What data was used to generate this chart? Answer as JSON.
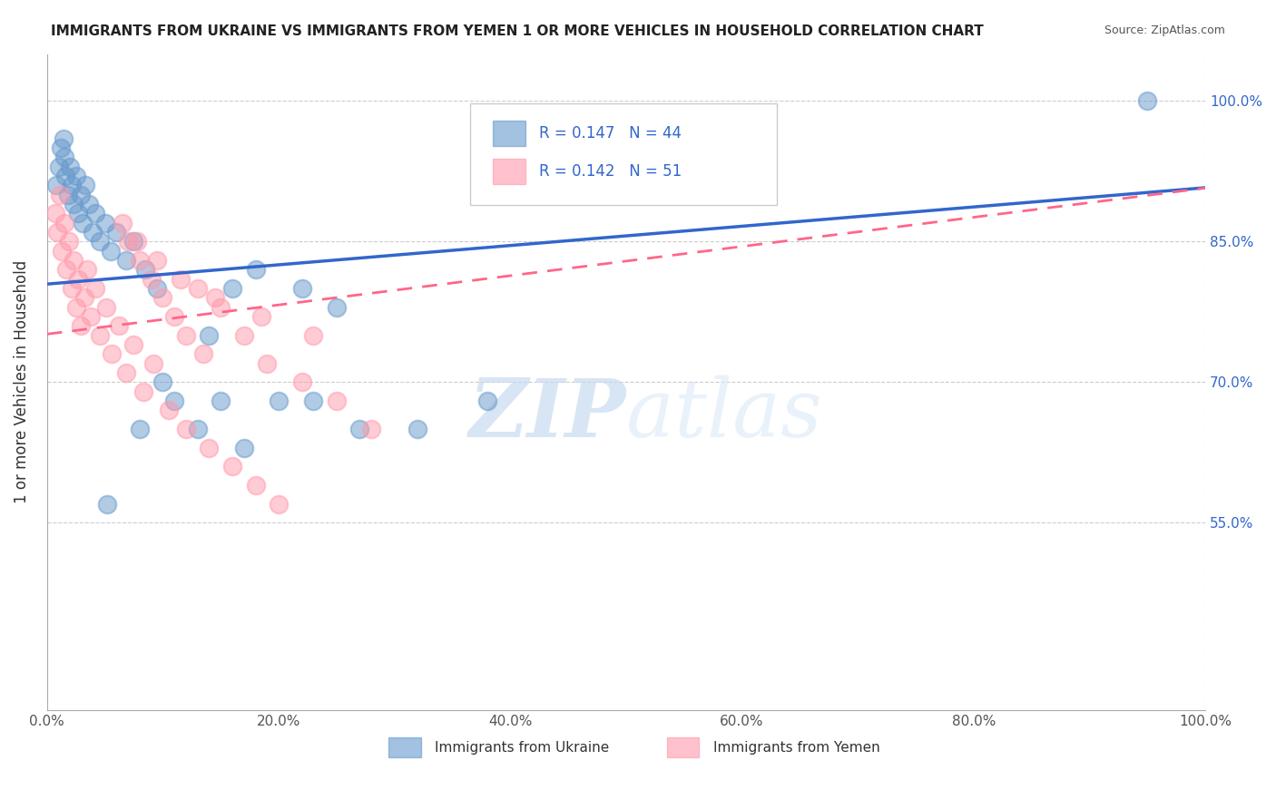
{
  "title": "IMMIGRANTS FROM UKRAINE VS IMMIGRANTS FROM YEMEN 1 OR MORE VEHICLES IN HOUSEHOLD CORRELATION CHART",
  "source": "Source: ZipAtlas.com",
  "ylabel": "1 or more Vehicles in Household",
  "x_range": [
    0.0,
    100.0
  ],
  "y_range": [
    35.0,
    105.0
  ],
  "ukraine_R": 0.147,
  "ukraine_N": 44,
  "yemen_R": 0.142,
  "yemen_N": 51,
  "ukraine_color": "#6699cc",
  "yemen_color": "#ff99aa",
  "ukraine_line_color": "#3366cc",
  "yemen_line_color": "#ff6688",
  "legend_ukraine": "Immigrants from Ukraine",
  "legend_yemen": "Immigrants from Yemen",
  "watermark_zip": "ZIP",
  "watermark_atlas": "atlas",
  "background_color": "#ffffff",
  "grid_color": "#cccccc",
  "ukraine_x": [
    0.8,
    1.0,
    1.2,
    1.4,
    1.5,
    1.6,
    1.8,
    2.0,
    2.1,
    2.3,
    2.5,
    2.7,
    2.9,
    3.1,
    3.3,
    3.6,
    3.9,
    4.2,
    4.6,
    5.0,
    5.5,
    6.0,
    6.8,
    7.5,
    8.5,
    9.5,
    11.0,
    13.0,
    15.0,
    17.0,
    20.0,
    23.0,
    27.0,
    32.0,
    38.0,
    22.0,
    25.0,
    18.0,
    16.0,
    14.0,
    10.0,
    8.0,
    5.2,
    95.0
  ],
  "ukraine_y": [
    91.0,
    93.0,
    95.0,
    96.0,
    94.0,
    92.0,
    90.0,
    93.0,
    91.0,
    89.0,
    92.0,
    88.0,
    90.0,
    87.0,
    91.0,
    89.0,
    86.0,
    88.0,
    85.0,
    87.0,
    84.0,
    86.0,
    83.0,
    85.0,
    82.0,
    80.0,
    68.0,
    65.0,
    68.0,
    63.0,
    68.0,
    68.0,
    65.0,
    65.0,
    68.0,
    80.0,
    78.0,
    82.0,
    80.0,
    75.0,
    70.0,
    65.0,
    57.0,
    100.0
  ],
  "yemen_x": [
    0.7,
    0.9,
    1.1,
    1.3,
    1.5,
    1.7,
    1.9,
    2.1,
    2.3,
    2.5,
    2.7,
    2.9,
    3.2,
    3.5,
    3.8,
    4.2,
    4.6,
    5.1,
    5.6,
    6.2,
    6.8,
    7.5,
    8.3,
    9.2,
    10.5,
    12.0,
    14.0,
    16.0,
    18.0,
    20.0,
    13.0,
    15.0,
    17.0,
    19.0,
    22.0,
    25.0,
    28.0,
    7.0,
    8.0,
    9.0,
    10.0,
    11.0,
    12.0,
    13.5,
    6.5,
    7.8,
    9.5,
    11.5,
    14.5,
    18.5,
    23.0
  ],
  "yemen_y": [
    88.0,
    86.0,
    90.0,
    84.0,
    87.0,
    82.0,
    85.0,
    80.0,
    83.0,
    78.0,
    81.0,
    76.0,
    79.0,
    82.0,
    77.0,
    80.0,
    75.0,
    78.0,
    73.0,
    76.0,
    71.0,
    74.0,
    69.0,
    72.0,
    67.0,
    65.0,
    63.0,
    61.0,
    59.0,
    57.0,
    80.0,
    78.0,
    75.0,
    72.0,
    70.0,
    68.0,
    65.0,
    85.0,
    83.0,
    81.0,
    79.0,
    77.0,
    75.0,
    73.0,
    87.0,
    85.0,
    83.0,
    81.0,
    79.0,
    77.0,
    75.0
  ]
}
